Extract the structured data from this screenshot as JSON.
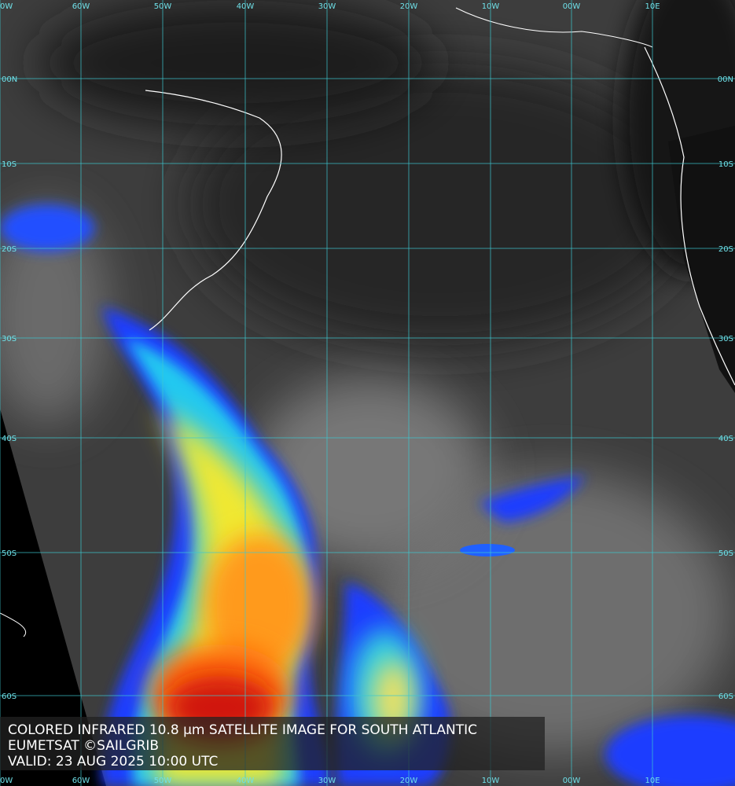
{
  "grid": {
    "longitudes": [
      "0W",
      "60W",
      "50W",
      "40W",
      "30W",
      "20W",
      "10W",
      "00W",
      "10E"
    ],
    "latitudes": [
      "00N",
      "10S",
      "20S",
      "30S",
      "40S",
      "50S",
      "60S"
    ]
  },
  "caption": {
    "lines": [
      "COLORED INFRARED 10.8 µm SATELLITE IMAGE FOR SOUTH ATLANTIC",
      "EUMETSAT ©SAILGRIB",
      "VALID:  23 AUG 2025 10:00 UTC"
    ]
  }
}
